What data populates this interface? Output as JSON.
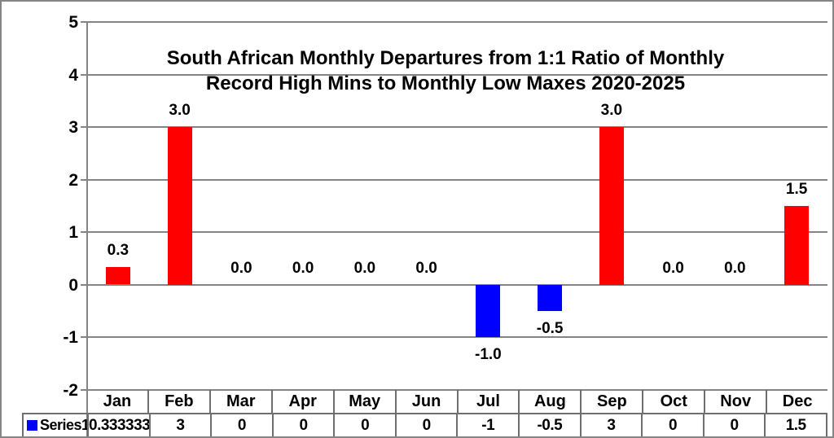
{
  "window": {
    "background": "#ffffff",
    "border_color": "#858585",
    "gridline_color": "#848484",
    "table_border_color": "#6e6e6e"
  },
  "chart_data": {
    "type": "bar",
    "title": "South African Monthly Departures from 1:1 Ratio of Monthly Record High Mins to Monthly Low Maxes 2020-2025",
    "title_lines": [
      "South African Monthly Departures from 1:1 Ratio of Monthly",
      "Record High Mins to Monthly Low Maxes 2020-2025"
    ],
    "categories": [
      "Jan",
      "Feb",
      "Mar",
      "Apr",
      "May",
      "Jun",
      "Jul",
      "Aug",
      "Sep",
      "Oct",
      "Nov",
      "Dec"
    ],
    "series": [
      {
        "name": "Series1",
        "values": [
          0.333333,
          3,
          0,
          0,
          0,
          0,
          -1,
          -0.5,
          3,
          0,
          0,
          1.5
        ],
        "bar_labels": [
          "0.3",
          "3.0",
          "0.0",
          "0.0",
          "0.0",
          "0.0",
          "-1.0",
          "-0.5",
          "3.0",
          "0.0",
          "0.0",
          "1.5"
        ],
        "positive_color": "#ff0000",
        "negative_color": "#0000ff",
        "legend_marker_color": "#0000ff"
      }
    ],
    "data_table": {
      "row_header": "Series1",
      "cell_values": [
        "0.333333",
        "3",
        "0",
        "0",
        "0",
        "0",
        "-1",
        "-0.5",
        "3",
        "0",
        "0",
        "1.5"
      ]
    },
    "y_ticks": [
      "5",
      "4",
      "3",
      "2",
      "1",
      "0",
      "-1",
      "-2"
    ],
    "y_tick_values": [
      5,
      4,
      3,
      2,
      1,
      0,
      -1,
      -2
    ],
    "ylim": [
      -2,
      5
    ],
    "xlabel": "",
    "ylabel": "",
    "grid": true,
    "legend_position": "bottom-left-table"
  }
}
